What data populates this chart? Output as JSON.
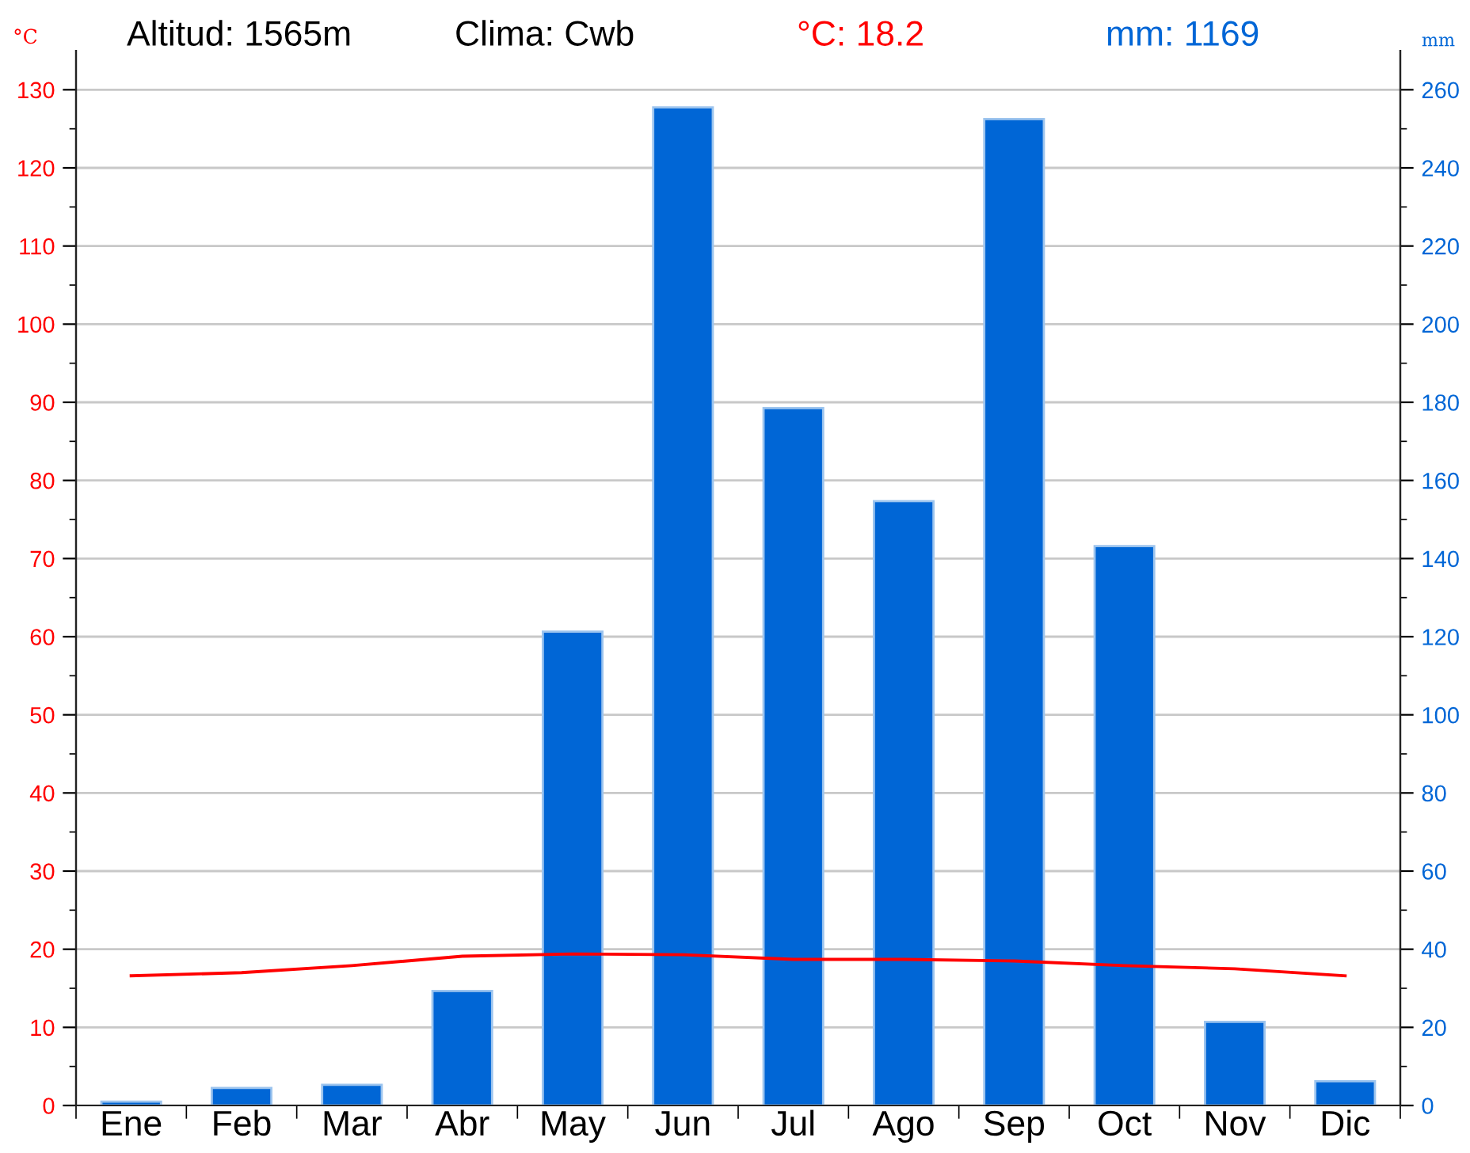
{
  "chart_data": {
    "type": "bar",
    "categories": [
      "Ene",
      "Feb",
      "Mar",
      "Abr",
      "May",
      "Jun",
      "Jul",
      "Ago",
      "Sep",
      "Oct",
      "Nov",
      "Dic"
    ],
    "ylabel": "°C",
    "y2label": "mm",
    "annotations": [
      "Altitud: 1565m",
      "Clima: Cwb",
      "°C: 18.2",
      "mm: 1169"
    ],
    "series": [
      {
        "type": "line",
        "color": "#ff0000",
        "values": [
          16.6,
          17.0,
          17.9,
          19.1,
          19.4,
          19.3,
          18.7,
          18.7,
          18.5,
          17.9,
          17.5,
          16.6
        ]
      },
      {
        "axis": "y2",
        "color": "#0066d6",
        "values": [
          1,
          4.5,
          5.3,
          29.3,
          121.3,
          255.5,
          178.5,
          154.7,
          252.5,
          143.2,
          21.4,
          6.2
        ]
      }
    ],
    "ylim": [
      0,
      135
    ],
    "yticks": [
      0,
      10,
      20,
      30,
      40,
      50,
      60,
      70,
      80,
      90,
      100,
      110,
      120,
      130
    ],
    "y2lim": [
      0,
      270
    ],
    "y2ticks": [
      0,
      20,
      40,
      60,
      80,
      100,
      120,
      140,
      160,
      180,
      200,
      220,
      240,
      260
    ],
    "grid": "y",
    "marker": "none",
    "line_style": "solid"
  }
}
